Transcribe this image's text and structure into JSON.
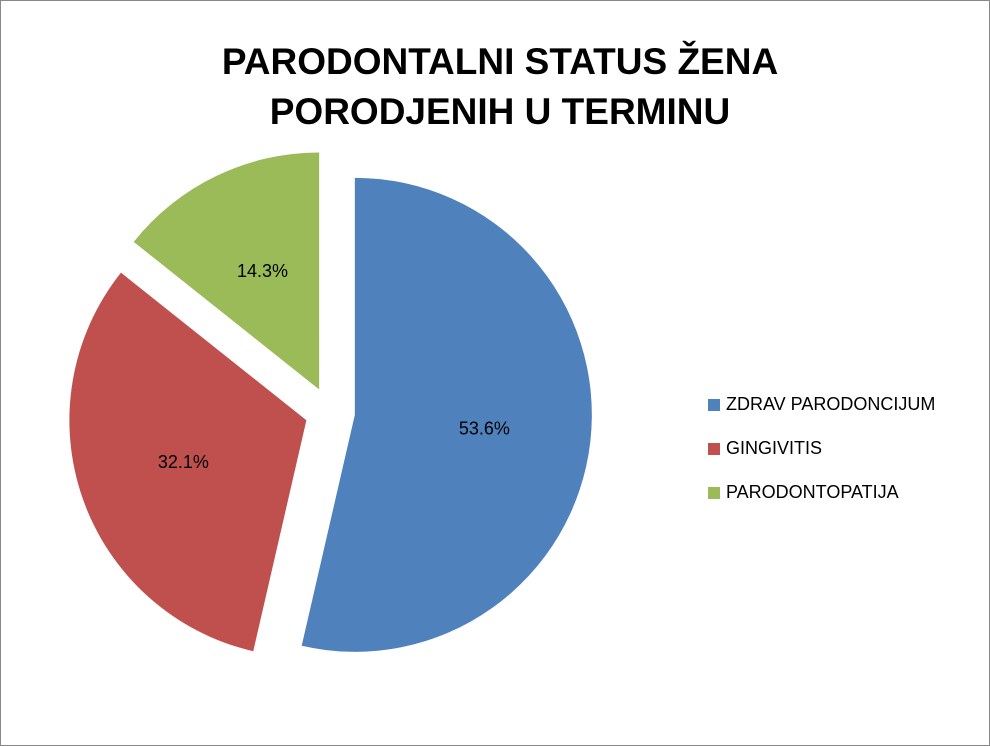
{
  "chart_data": {
    "type": "pie",
    "title": [
      "PARODONTALNI STATUS ŽENA",
      "PORODJENIH U TERMINU"
    ],
    "categories": [
      "ZDRAV PARODONCIJUM",
      "GINGIVITIS",
      "PARODONTOPATIJA"
    ],
    "values": [
      53.6,
      32.1,
      14.3
    ],
    "value_labels": [
      "53.6%",
      "32.1%",
      "14.3%"
    ],
    "colors": [
      "#4f81bd",
      "#c0504d",
      "#9bbb59"
    ],
    "legend": "right"
  }
}
